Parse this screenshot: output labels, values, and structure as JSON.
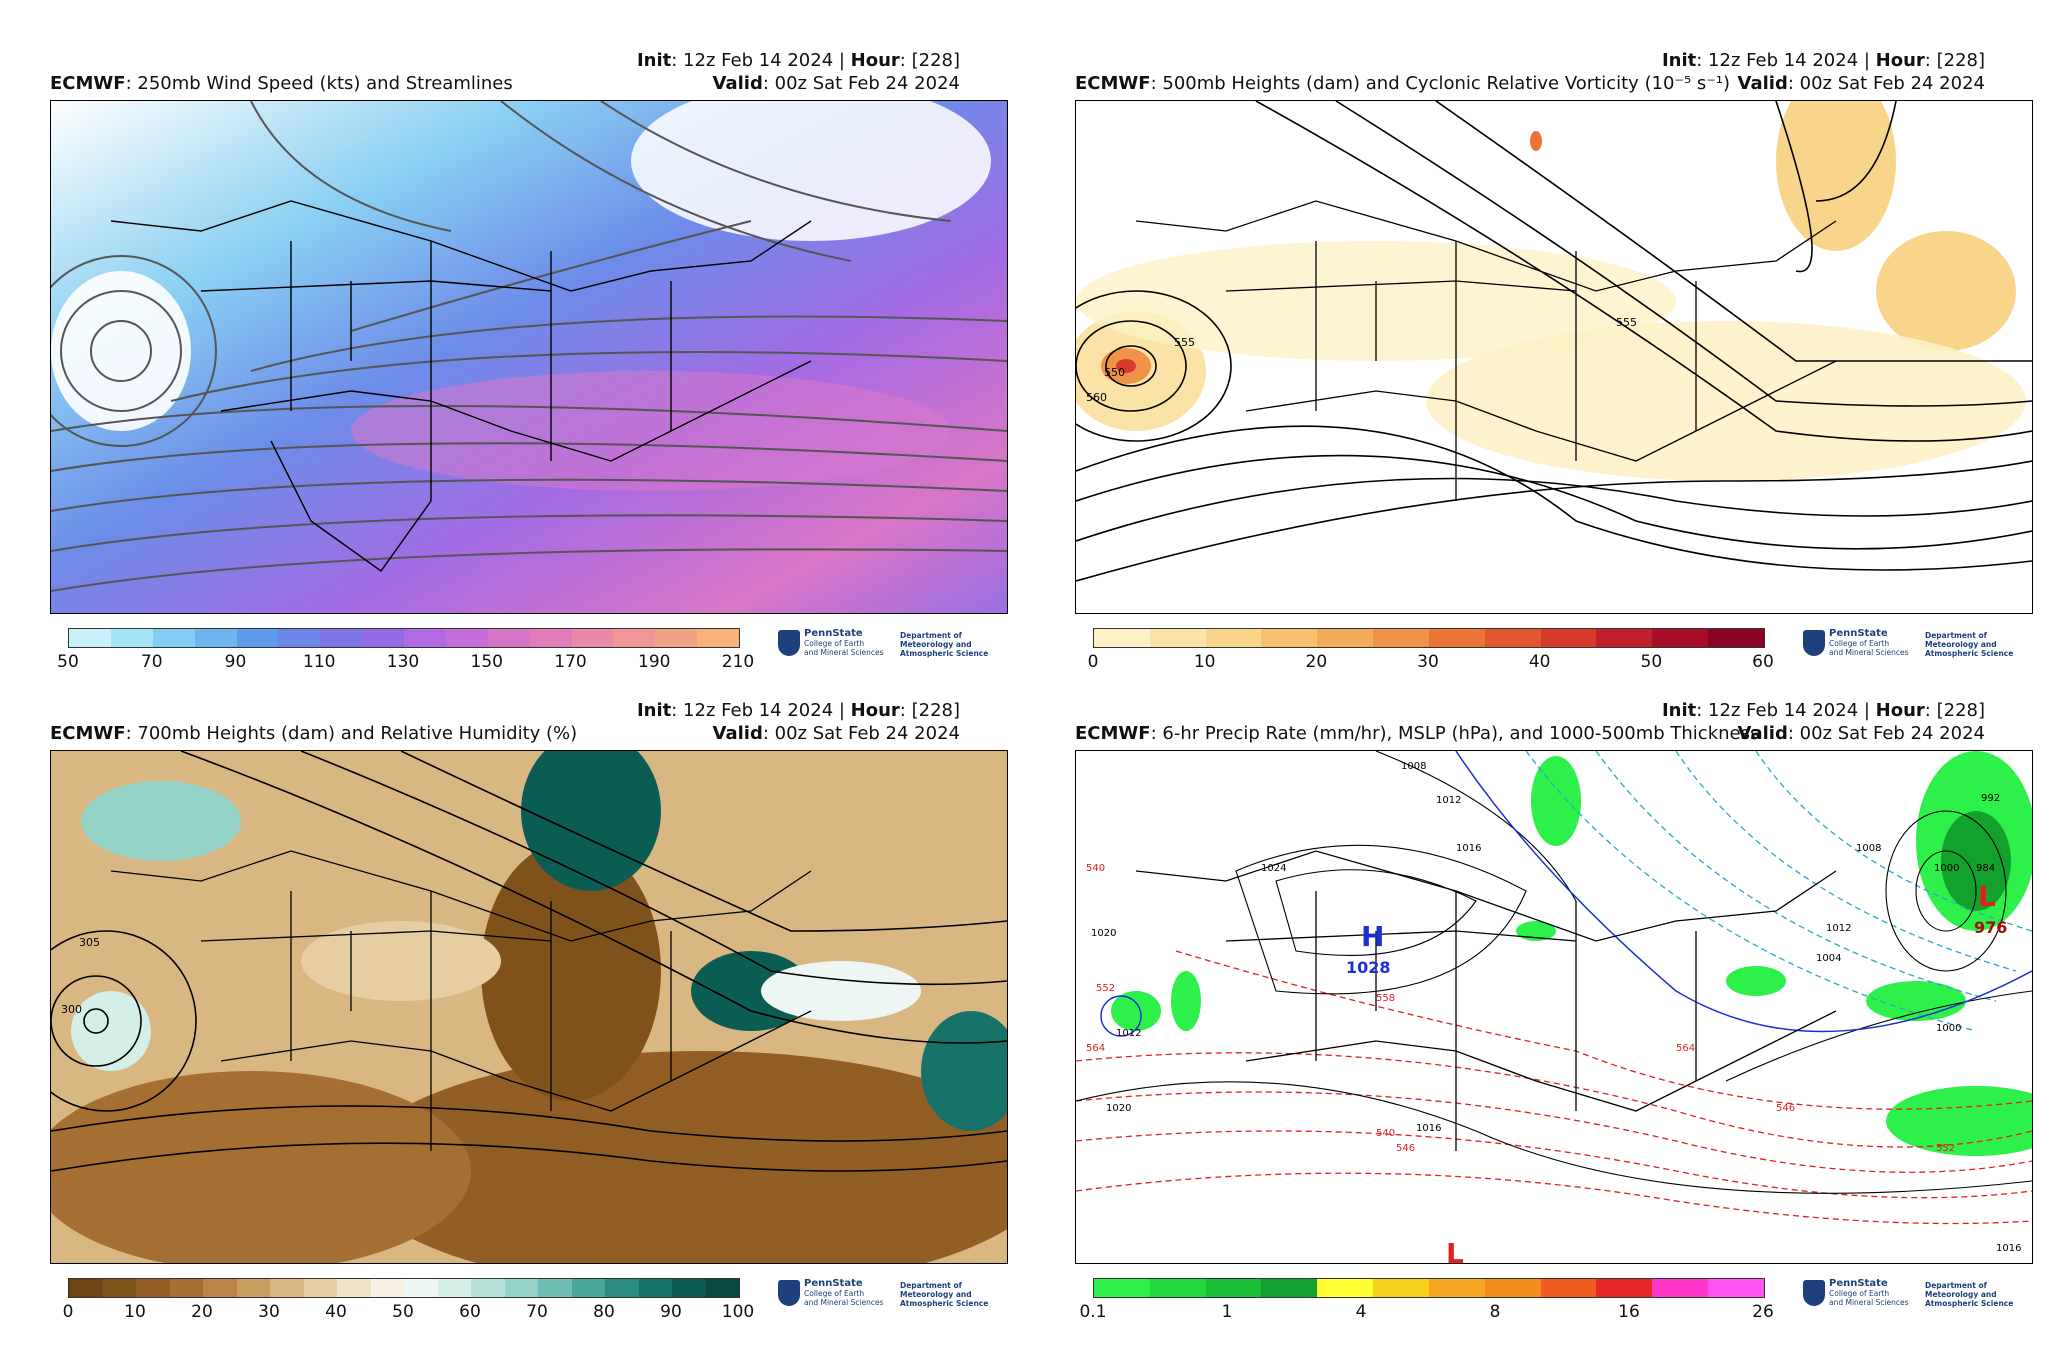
{
  "init_label": "Init",
  "hour_label": "Hour",
  "valid_label": "Valid",
  "init_time": "12z Feb 14 2024",
  "hour": "[228]",
  "valid_time": "00z Sat Feb 24 2024",
  "model": "ECMWF",
  "logo": {
    "name": "PennState",
    "college_line1": "College of Earth",
    "college_line2": "and Mineral Sciences",
    "dept_line1": "Department of",
    "dept_line2": "Meteorology and",
    "dept_line3": "Atmospheric Science"
  },
  "panels": [
    {
      "title": "250mb Wind Speed (kts) and Streamlines",
      "colorbar_ticks": [
        "50",
        "70",
        "90",
        "110",
        "130",
        "150",
        "170",
        "190",
        "210"
      ],
      "colorbar_colors": [
        "#c9f1fb",
        "#a5e3f7",
        "#82cef3",
        "#6cb5ef",
        "#5e9ceb",
        "#6c86ea",
        "#7e74e8",
        "#946ae6",
        "#b06be4",
        "#c66ed8",
        "#d575c8",
        "#e07db8",
        "#e989a8",
        "#ef9696",
        "#f2a386",
        "#f6b279"
      ]
    },
    {
      "title": "500mb Heights (dam) and Cyclonic Relative Vorticity",
      "title_units": "(10⁻⁵ s⁻¹)",
      "colorbar_ticks": [
        "0",
        "10",
        "20",
        "30",
        "40",
        "50",
        "60"
      ],
      "colorbar_colors": [
        "#fdf1c6",
        "#fbe3a7",
        "#f9d58b",
        "#f6c272",
        "#f3ac5a",
        "#ef9348",
        "#eb7538",
        "#e4562f",
        "#d63a2b",
        "#c21f2a",
        "#a80c27",
        "#8a0424"
      ],
      "contour_labels": [
        "555",
        "560",
        "550",
        "555"
      ]
    },
    {
      "title": "700mb Heights (dam) and Relative Humidity (%)",
      "colorbar_ticks": [
        "0",
        "10",
        "20",
        "30",
        "40",
        "50",
        "60",
        "70",
        "80",
        "90",
        "100"
      ],
      "colorbar_colors": [
        "#6e4513",
        "#7f521c",
        "#915f26",
        "#a46f33",
        "#b88447",
        "#c99c62",
        "#d9b782",
        "#e6cda4",
        "#f0e2c5",
        "#f7f0e3",
        "#eef6f3",
        "#d4eee8",
        "#b6e2da",
        "#94d2c8",
        "#6fbeb3",
        "#4aa69b",
        "#2a8c82",
        "#177269",
        "#0b5c53",
        "#074a42"
      ],
      "contour_labels": [
        "305",
        "300"
      ]
    },
    {
      "title": "6-hr Precip Rate (mm/hr), MSLP (hPa), and 1000-500mb Thickness",
      "colorbar_ticks": [
        "0.1",
        "1",
        "4",
        "8",
        "16",
        "26"
      ],
      "colorbar_colors": [
        "#2ef04a",
        "#22d640",
        "#19bd36",
        "#12a12c",
        "#ffff33",
        "#f7d11a",
        "#f5a623",
        "#f28c1c",
        "#ef5b21",
        "#ea2727",
        "#ff36c8",
        "#ff52f0"
      ],
      "high": {
        "letter": "H",
        "value": "1028"
      },
      "lows": [
        {
          "letter": "L",
          "value": "976"
        },
        {
          "letter": "L",
          "value": ""
        }
      ],
      "isobar_labels": [
        "1008",
        "1012",
        "1016",
        "1024",
        "1020",
        "1012",
        "1016",
        "1020",
        "1012",
        "1004",
        "1000",
        "1016",
        "984",
        "992",
        "1000",
        "1008"
      ],
      "thickness_labels": [
        "540",
        "552",
        "564",
        "540",
        "546",
        "552",
        "558",
        "564",
        "546"
      ]
    }
  ]
}
